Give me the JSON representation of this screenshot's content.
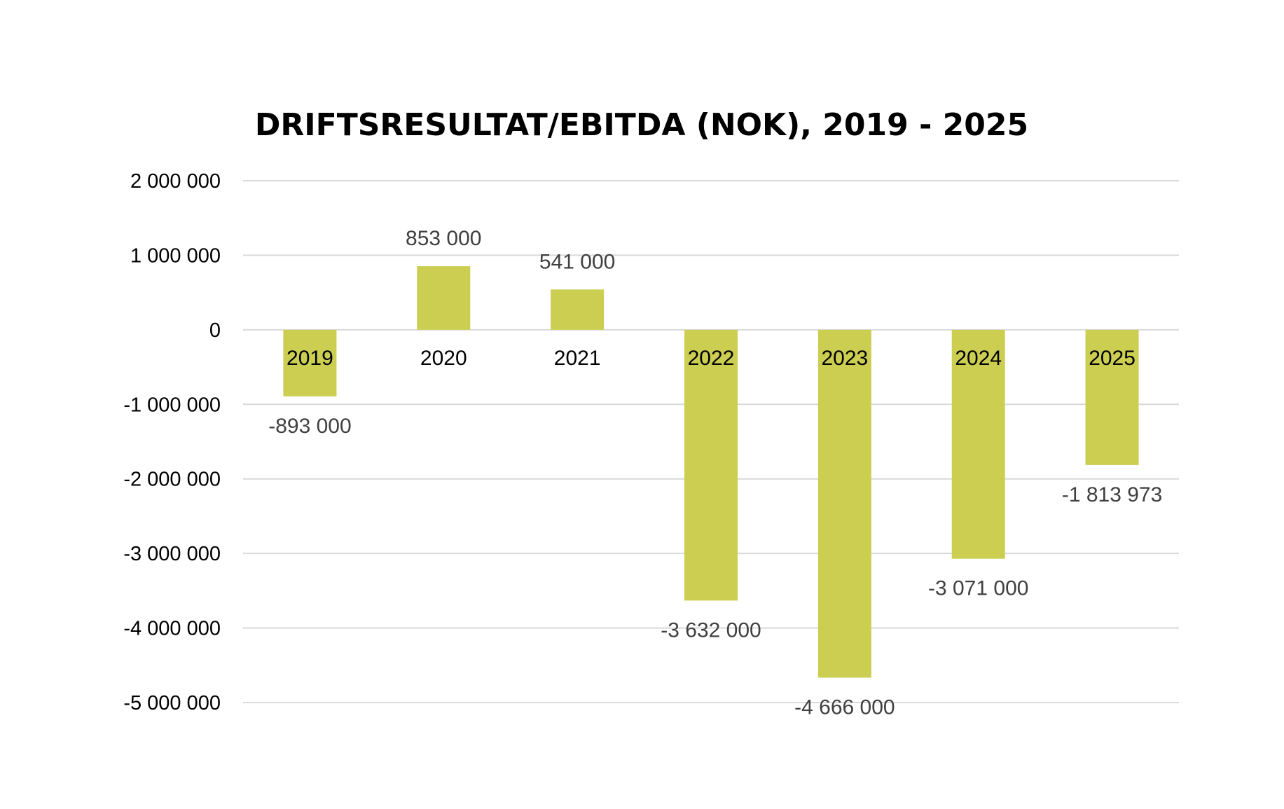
{
  "chart_data": {
    "type": "bar",
    "title": "DRIFTSRESULTAT/EBITDA (NOK), 2019 - 2025",
    "xlabel": "",
    "ylabel": "",
    "categories": [
      "2019",
      "2020",
      "2021",
      "2022",
      "2023",
      "2024",
      "2025"
    ],
    "values": [
      -893000,
      853000,
      541000,
      -3632000,
      -4666000,
      -3071000,
      -1813973
    ],
    "data_labels": [
      "-893 000",
      "853 000",
      "541 000",
      "-3 632 000",
      "-4 666 000",
      "-3 071 000",
      "-1 813 973"
    ],
    "ylim": [
      -5000000,
      2000000
    ],
    "yticks": [
      2000000,
      1000000,
      0,
      -1000000,
      -2000000,
      -3000000,
      -4000000,
      -5000000
    ],
    "ytick_labels": [
      "2 000 000",
      "1 000 000",
      "0",
      "-1 000 000",
      "-2 000 000",
      "-3 000 000",
      "-4 000 000",
      "-5 000 000"
    ],
    "grid": true,
    "legend": "none",
    "bar_color": "#ccce51"
  }
}
